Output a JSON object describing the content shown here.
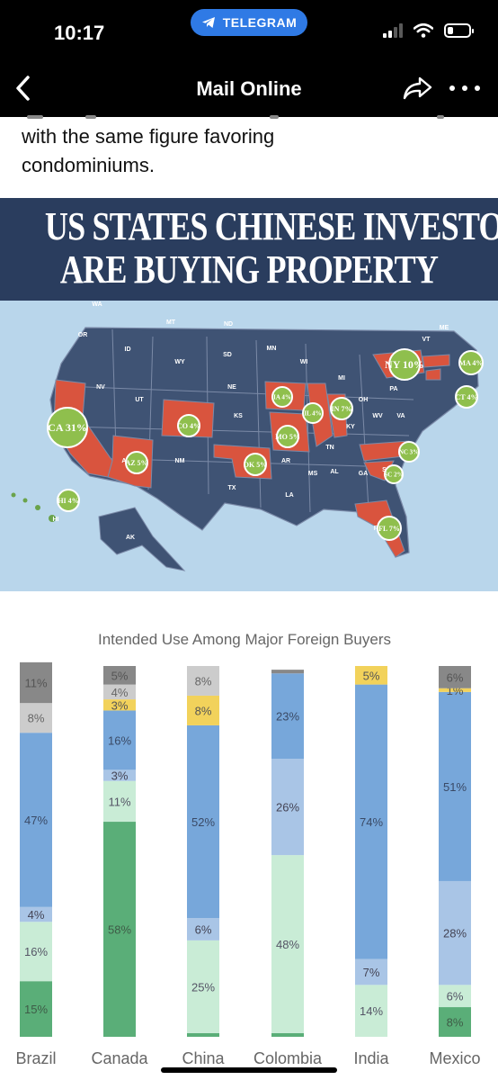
{
  "status_bar": {
    "time": "10:17",
    "app_pill": "TELEGRAM",
    "signal_bars": 2,
    "battery_level": 0.25
  },
  "nav": {
    "back_icon": "chevron-left-icon",
    "title": "Mail Online",
    "share_icon": "share-arrow-icon",
    "more_icon": "ellipsis-icon"
  },
  "article": {
    "line1": "with the same figure favoring",
    "line2": "condominiums."
  },
  "infographic": {
    "headline_line1": "US STATES CHINESE INVESTORS",
    "headline_line2": "ARE BUYING PROPERTY",
    "highlighted_states": [
      {
        "label": "CA 31%"
      },
      {
        "label": "AZ 5%"
      },
      {
        "label": "CO 4%"
      },
      {
        "label": "OK 5%"
      },
      {
        "label": "IA 4%"
      },
      {
        "label": "MO 5%"
      },
      {
        "label": "IL 4%"
      },
      {
        "label": "IN 7%"
      },
      {
        "label": "NY 10%"
      },
      {
        "label": "MA 4%"
      },
      {
        "label": "CT 4%"
      },
      {
        "label": "NC 3%"
      },
      {
        "label": "SC 2%"
      },
      {
        "label": "FL 7%"
      },
      {
        "label": "HI 4%"
      }
    ],
    "state_labels": [
      "WA",
      "OR",
      "MT",
      "ND",
      "ID",
      "WY",
      "SD",
      "MN",
      "WI",
      "MI",
      "NV",
      "UT",
      "NE",
      "KS",
      "CA",
      "AZ",
      "NM",
      "TX",
      "AR",
      "LA",
      "MS",
      "AL",
      "GA",
      "TN",
      "KY",
      "OH",
      "PA",
      "WV",
      "VA",
      "NC",
      "SC",
      "FL",
      "VT",
      "ME",
      "AK",
      "HI"
    ],
    "colors": {
      "header": "#2a3d5e",
      "ocean": "#b9d6eb",
      "land": "#3f5374",
      "highlight_state": "#d9543e",
      "bubble": "#8fbf4d"
    }
  },
  "chart_data": {
    "type": "bar",
    "stacked": true,
    "title": "Intended Use Among Major Foreign Buyers",
    "categories": [
      "Brazil",
      "Canada",
      "China",
      "Colombia",
      "India",
      "Mexico"
    ],
    "ylim": [
      0,
      100
    ],
    "series": [
      {
        "color": "#5aae78",
        "values": [
          15,
          58,
          1,
          1,
          0,
          8
        ]
      },
      {
        "color": "#c9ecd6",
        "values": [
          16,
          11,
          25,
          48,
          14,
          6
        ]
      },
      {
        "color": "#a9c5e6",
        "values": [
          4,
          3,
          6,
          26,
          7,
          28
        ]
      },
      {
        "color": "#77a7da",
        "values": [
          47,
          16,
          52,
          23,
          74,
          51
        ]
      },
      {
        "color": "#f2d25b",
        "values": [
          0,
          3,
          8,
          0,
          5,
          1
        ]
      },
      {
        "color": "#cccccc",
        "values": [
          8,
          4,
          8,
          0,
          0,
          0
        ]
      },
      {
        "color": "#888888",
        "values": [
          11,
          5,
          0,
          1,
          0,
          6
        ]
      }
    ],
    "data_labels": [
      [
        "15%",
        "16%",
        "4%",
        "47%",
        "",
        "8%",
        "11%"
      ],
      [
        "58%",
        "11%",
        "3%",
        "16%",
        "3%",
        "4%",
        "5%"
      ],
      [
        "",
        "25%",
        "6%",
        "52%",
        "8%",
        "8%",
        ""
      ],
      [
        "",
        "48%",
        "26%",
        "23%",
        "",
        "",
        ""
      ],
      [
        "",
        "14%",
        "7%",
        "74%",
        "5%",
        "",
        ""
      ],
      [
        "8%",
        "6%",
        "28%",
        "51%",
        "1%",
        "",
        "6%"
      ]
    ],
    "grid": false,
    "legend": "none"
  }
}
